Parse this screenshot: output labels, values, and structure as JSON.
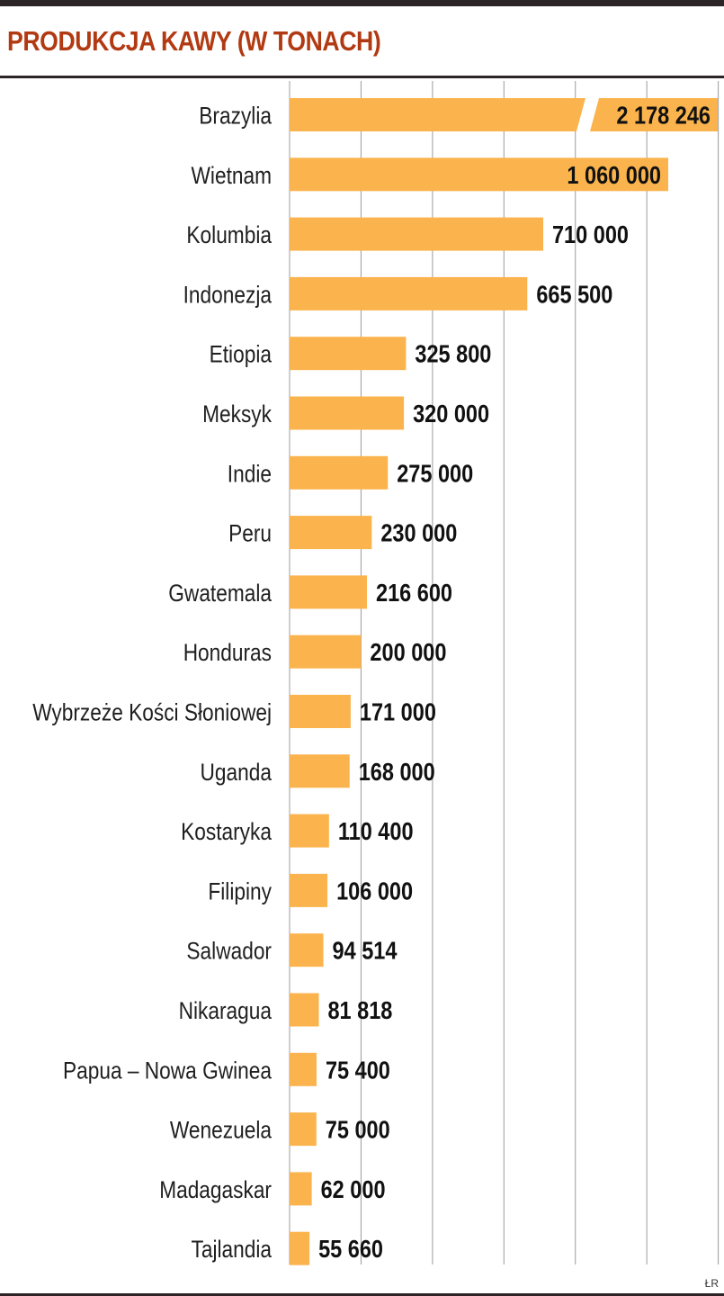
{
  "title": "PRODUKCJA KAWY (W TONACH)",
  "source": "ŁR",
  "colors": {
    "bar": "#fbb44d",
    "title": "#b23a12",
    "grid": "#9c9c9c",
    "rule": "#2b2528"
  },
  "chart_data": {
    "type": "bar",
    "orientation": "horizontal",
    "title": "PRODUKCJA KAWY (W TONACH)",
    "xlabel": "",
    "ylabel": "",
    "grid": true,
    "broken_axis_for_first_bar": true,
    "categories": [
      "Brazylia",
      "Wietnam",
      "Kolumbia",
      "Indonezja",
      "Etiopia",
      "Meksyk",
      "Indie",
      "Peru",
      "Gwatemala",
      "Honduras",
      "Wybrzeże Kości Słoniowej",
      "Uganda",
      "Kostaryka",
      "Filipiny",
      "Salwador",
      "Nikaragua",
      "Papua – Nowa Gwinea",
      "Wenezuela",
      "Madagaskar",
      "Tajlandia"
    ],
    "values": [
      2178246,
      1060000,
      710000,
      665500,
      325800,
      320000,
      275000,
      230000,
      216600,
      200000,
      171000,
      168000,
      110400,
      106000,
      94514,
      81818,
      75400,
      75000,
      62000,
      55660
    ],
    "value_labels": [
      "2 178 246",
      "1 060 000",
      "710 000",
      "665 500",
      "325 800",
      "320 000",
      "275 000",
      "230 000",
      "216 600",
      "200 000",
      "171 000",
      "168 000",
      "110 400",
      "106 000",
      "94 514",
      "81 818",
      "75 400",
      "75 000",
      "62 000",
      "55 660"
    ]
  }
}
